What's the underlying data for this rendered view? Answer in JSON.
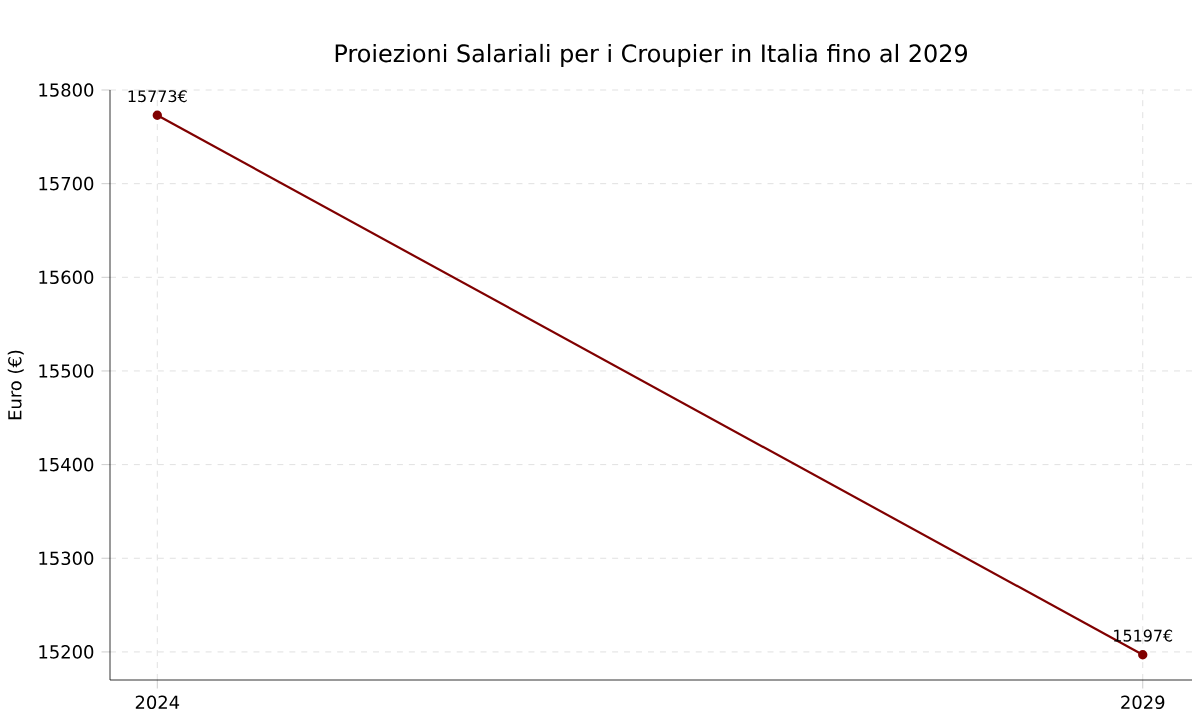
{
  "chart_data": {
    "type": "line",
    "title": "Proiezioni Salariali per i Croupier in Italia fino al 2029",
    "ylabel": "Euro (€)",
    "x": [
      2024,
      2029
    ],
    "series": [
      {
        "color": "#800000",
        "values": [
          15773,
          15197
        ],
        "value_labels": [
          "15773€",
          "15197€"
        ]
      }
    ],
    "xlim": [
      2023.76,
      2029.25
    ],
    "xticks": [
      2024,
      2029
    ],
    "ylim": [
      15170,
      15800
    ],
    "yticks": [
      15200,
      15300,
      15400,
      15500,
      15600,
      15700,
      15800
    ],
    "grid": true,
    "marker": "circle",
    "line_style": "solid"
  }
}
